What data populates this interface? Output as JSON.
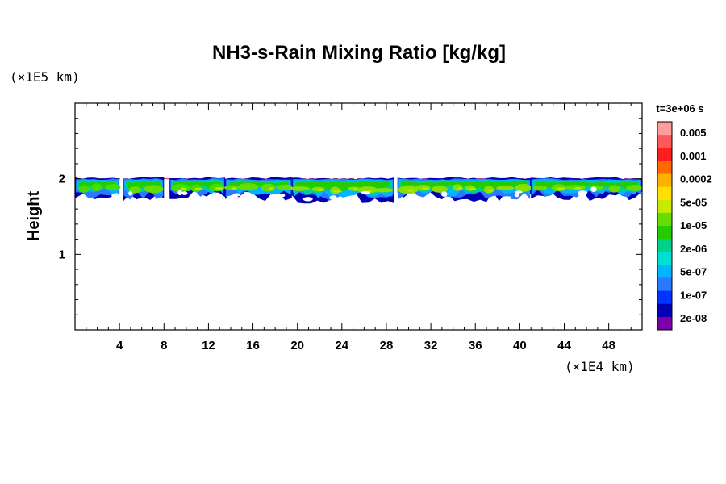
{
  "chart_data": {
    "type": "heatmap",
    "title": "NH3-s-Rain Mixing Ratio [kg/kg]",
    "ylabel": "Height",
    "xlabel": "",
    "x_scale_label": "(×1E4 km)",
    "y_scale_label": "(×1E5 km)",
    "time_label": "t=3e+06 s",
    "xlim": [
      0,
      51
    ],
    "ylim": [
      0,
      3
    ],
    "x_ticks": [
      4,
      8,
      12,
      16,
      20,
      24,
      28,
      32,
      36,
      40,
      44,
      48
    ],
    "y_ticks": [
      1,
      2
    ],
    "colorbar": {
      "labels": [
        "0.005",
        "0.001",
        "0.0002",
        "5e-05",
        "1e-05",
        "2e-06",
        "5e-07",
        "1e-07",
        "2e-08"
      ],
      "colors": [
        "#ff9c9c",
        "#ff5a5a",
        "#ff1e1e",
        "#ff6a00",
        "#ffb000",
        "#ffe000",
        "#c8ea00",
        "#66dd00",
        "#22cc00",
        "#00d28a",
        "#00e0d2",
        "#00b4ff",
        "#2a7aff",
        "#0033ff",
        "#0000b4",
        "#7a00a8"
      ]
    },
    "cloud_layer": {
      "top_height": 2.0,
      "segments": [
        {
          "x_start": 0.0,
          "x_end": 4.0,
          "bottom": 1.7,
          "core": "#44dd00"
        },
        {
          "x_start": 4.3,
          "x_end": 8.0,
          "bottom": 1.68,
          "core": "#66dd00"
        },
        {
          "x_start": 8.5,
          "x_end": 13.5,
          "bottom": 1.72,
          "core": "#44dd00"
        },
        {
          "x_start": 13.5,
          "x_end": 19.5,
          "bottom": 1.7,
          "core": "#66dd00"
        },
        {
          "x_start": 19.5,
          "x_end": 28.7,
          "bottom": 1.65,
          "core": "#88e000"
        },
        {
          "x_start": 29.0,
          "x_end": 41.0,
          "bottom": 1.68,
          "core": "#88e000"
        },
        {
          "x_start": 41.0,
          "x_end": 51.0,
          "bottom": 1.7,
          "core": "#66dd00"
        }
      ]
    }
  }
}
